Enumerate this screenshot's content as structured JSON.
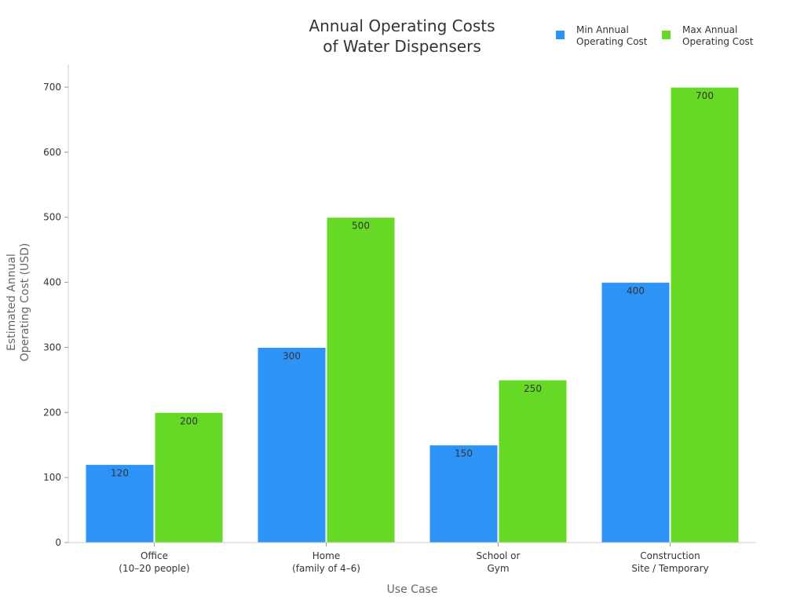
{
  "chart_data": {
    "type": "bar",
    "title": [
      "Annual Operating Costs",
      "of Water Dispensers"
    ],
    "xlabel": "Use Case",
    "ylabel": [
      "Estimated Annual",
      "Operating Cost (USD)"
    ],
    "categories": [
      [
        "Office",
        "(10–20 people)"
      ],
      [
        "Home",
        "(family of 4–6)"
      ],
      [
        "School or",
        "Gym"
      ],
      [
        "Construction",
        "Site / Temporary"
      ]
    ],
    "series": [
      {
        "name": [
          "Min Annual",
          "Operating Cost"
        ],
        "color": "#2e93f7",
        "values": [
          120,
          300,
          150,
          400
        ]
      },
      {
        "name": [
          "Max Annual",
          "Operating Cost"
        ],
        "color": "#66d926",
        "values": [
          200,
          500,
          250,
          700
        ]
      }
    ],
    "ylim": [
      0,
      735
    ],
    "yticks": [
      0,
      100,
      200,
      300,
      400,
      500,
      600,
      700
    ],
    "grid": false,
    "legend_position": "top-right",
    "data_labels": true
  }
}
